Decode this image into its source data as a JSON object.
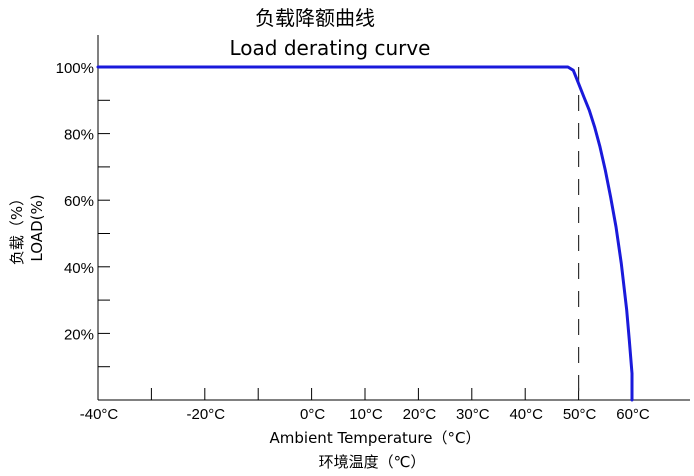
{
  "chart_data": {
    "type": "line",
    "title_lines": [
      "负载降额曲线",
      "Load derating curve"
    ],
    "xlabel_lines": [
      "Ambient Temperature（°C）",
      "环境温度（℃）"
    ],
    "ylabel_lines": [
      "负载（%）",
      "LOAD(%)"
    ],
    "x_ticks": [
      -40,
      -30,
      -20,
      -10,
      0,
      10,
      20,
      30,
      40,
      50,
      60
    ],
    "x_tick_labels": [
      "-40°C",
      "-20°C",
      "0°C",
      "10°C",
      "20°C",
      "30°C",
      "40°C",
      "50°C",
      "60°C"
    ],
    "x_tick_label_values": [
      -40,
      -20,
      0,
      10,
      20,
      30,
      40,
      50,
      60
    ],
    "y_ticks": [
      0,
      10,
      20,
      30,
      40,
      50,
      60,
      70,
      80,
      90,
      100
    ],
    "y_tick_labels": [
      "100%",
      "80%",
      "60%",
      "40%",
      "20%"
    ],
    "y_tick_label_values": [
      100,
      80,
      60,
      40,
      20
    ],
    "xlim": [
      -40,
      60
    ],
    "ylim": [
      0,
      110
    ],
    "grid": false,
    "line_color": "#1a1adb",
    "reference_line_x": 50,
    "series": [
      {
        "x": [
          -40,
          48,
          49,
          50,
          51,
          52,
          53,
          54,
          55,
          56,
          57,
          58,
          59,
          59.5,
          60,
          60
        ],
        "values": [
          100,
          100,
          99,
          95,
          91,
          87,
          82,
          76,
          69,
          61,
          52,
          41,
          27,
          18,
          8,
          0
        ]
      }
    ]
  }
}
